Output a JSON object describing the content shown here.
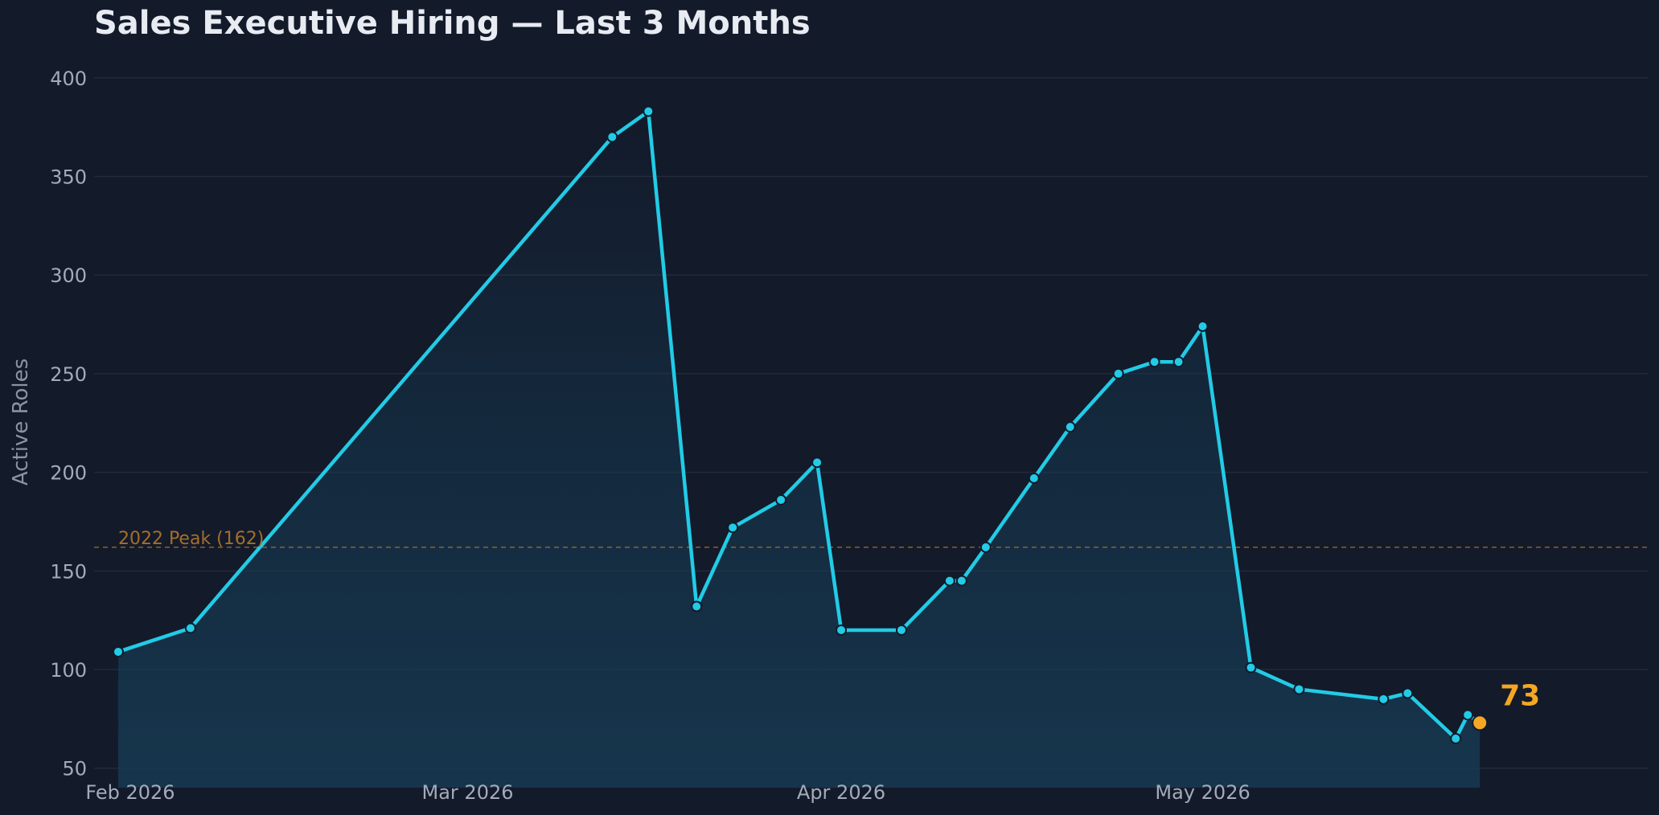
{
  "chart_data": {
    "type": "line",
    "title": "Sales Executive Hiring — Last 3 Months",
    "ylabel": "Active Roles",
    "xlabel": "",
    "ylim": [
      45,
      415
    ],
    "yticks": [
      50,
      100,
      150,
      200,
      250,
      300,
      350,
      400
    ],
    "xlim": [
      "2026-01-29",
      "2026-06-07"
    ],
    "xticks": [
      {
        "date": "2026-02-01",
        "label": "Feb 2026"
      },
      {
        "date": "2026-03-01",
        "label": "Mar 2026"
      },
      {
        "date": "2026-04-01",
        "label": "Apr 2026"
      },
      {
        "date": "2026-05-01",
        "label": "May 2026"
      }
    ],
    "grid": true,
    "series": [
      {
        "color": "#22cbe6",
        "points": [
          {
            "x": "2026-01-31",
            "y": 109
          },
          {
            "x": "2026-02-06",
            "y": 121
          },
          {
            "x": "2026-03-13",
            "y": 370
          },
          {
            "x": "2026-03-16",
            "y": 383
          },
          {
            "x": "2026-03-20",
            "y": 132
          },
          {
            "x": "2026-03-23",
            "y": 172
          },
          {
            "x": "2026-03-27",
            "y": 186
          },
          {
            "x": "2026-03-30",
            "y": 205
          },
          {
            "x": "2026-04-01",
            "y": 120
          },
          {
            "x": "2026-04-06",
            "y": 120
          },
          {
            "x": "2026-04-10",
            "y": 145
          },
          {
            "x": "2026-04-11",
            "y": 145
          },
          {
            "x": "2026-04-13",
            "y": 162
          },
          {
            "x": "2026-04-17",
            "y": 197
          },
          {
            "x": "2026-04-20",
            "y": 223
          },
          {
            "x": "2026-04-24",
            "y": 250
          },
          {
            "x": "2026-04-27",
            "y": 256
          },
          {
            "x": "2026-04-29",
            "y": 256
          },
          {
            "x": "2026-05-01",
            "y": 274
          },
          {
            "x": "2026-05-05",
            "y": 101
          },
          {
            "x": "2026-05-09",
            "y": 90
          },
          {
            "x": "2026-05-16",
            "y": 85
          },
          {
            "x": "2026-05-18",
            "y": 88
          },
          {
            "x": "2026-05-22",
            "y": 65
          },
          {
            "x": "2026-05-23",
            "y": 77
          },
          {
            "x": "2026-05-24",
            "y": 73
          }
        ]
      }
    ],
    "reference_line": {
      "y": 162,
      "label": "2022 Peak (162)",
      "color": "#a36e2c"
    },
    "last_value": {
      "value": 73,
      "label": "73",
      "color": "#f5a623"
    },
    "colors": {
      "background": "#131a2a",
      "grid": "#222a3b",
      "line": "#22cbe6",
      "fill": "#163a52",
      "ticks": "#a3abbb"
    }
  }
}
